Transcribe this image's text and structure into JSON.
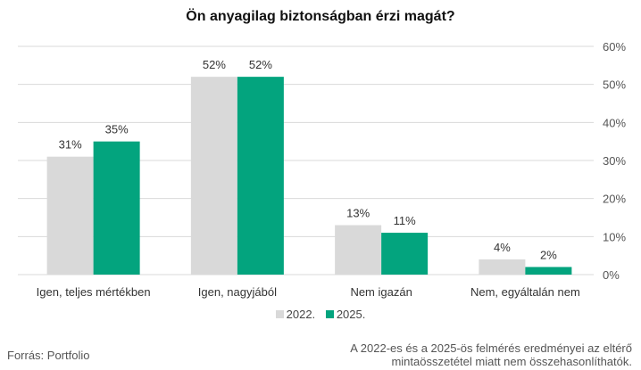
{
  "chart_data": {
    "type": "bar",
    "title": "Ön anyagilag biztonságban érzi magát?",
    "categories": [
      "Igen, teljes mértékben",
      "Igen, nagyjából",
      "Nem igazán",
      "Nem, egyáltalán nem"
    ],
    "series": [
      {
        "name": "2022.",
        "color": "#d9d9d9",
        "values": [
          31,
          52,
          13,
          4
        ],
        "labels": [
          "31%",
          "52%",
          "13%",
          "4%"
        ]
      },
      {
        "name": "2025.",
        "color": "#03a47e",
        "values": [
          35,
          52,
          11,
          2
        ],
        "labels": [
          "35%",
          "52%",
          "11%",
          "2%"
        ]
      }
    ],
    "ylim": [
      0,
      60
    ],
    "yticks": [
      0,
      10,
      20,
      30,
      40,
      50,
      60
    ],
    "ytick_labels": [
      "0%",
      "10%",
      "20%",
      "30%",
      "40%",
      "50%",
      "60%"
    ],
    "y_axis_side": "right",
    "grid": true,
    "legend_position": "bottom"
  },
  "footer": {
    "source": "Forrás: Portfolio",
    "note": "A 2022-es és a 2025-ös felmérés eredményei az eltérő mintaösszetétel miatt nem összehasonlíthatók."
  }
}
